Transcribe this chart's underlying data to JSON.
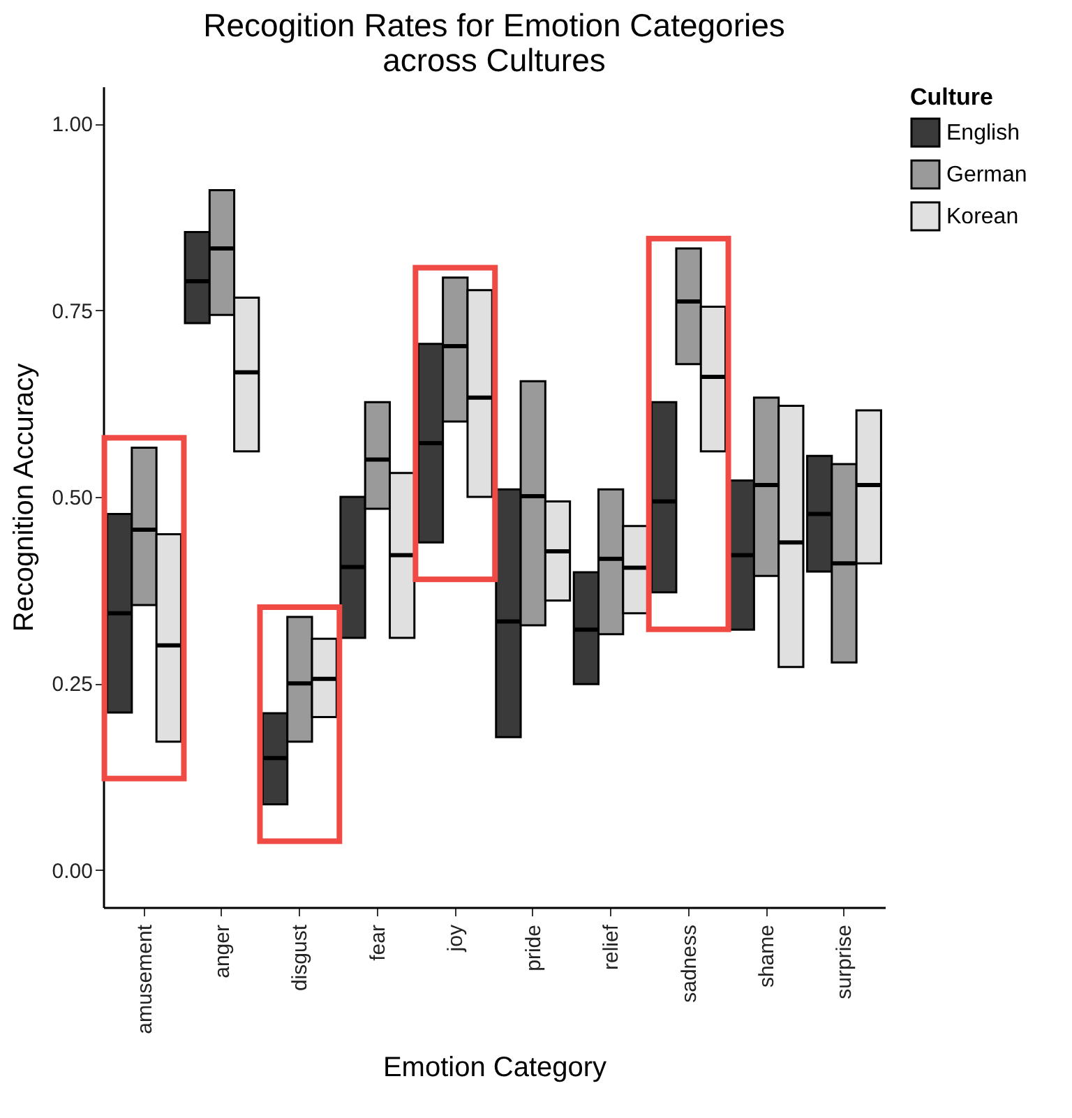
{
  "chart_data": {
    "type": "box",
    "title": "Recogition Rates for Emotion Categories across Cultures",
    "xlabel": "Emotion Category",
    "ylabel": "Recognition Accuracy",
    "legend_title": "Culture",
    "legend": "right",
    "grid": false,
    "categories": [
      "amusement",
      "anger",
      "disgust",
      "fear",
      "joy",
      "pride",
      "relief",
      "sadness",
      "shame",
      "surprise"
    ],
    "ylim": [
      -0.05,
      1.05
    ],
    "yticks": [
      {
        "value": 0,
        "label": "0.00"
      },
      {
        "value": 0.25,
        "label": "0.25"
      },
      {
        "value": 0.5,
        "label": "0.50"
      },
      {
        "value": 0.75,
        "label": "0.75"
      },
      {
        "value": 1,
        "label": "1.00"
      }
    ],
    "series": [
      {
        "name": "English",
        "color": "#3a3a3a",
        "boxes": [
          {
            "low": 0.211,
            "q1": 0.211,
            "median": 0.344,
            "q3": 0.477,
            "high": 0.477
          },
          {
            "low": 0.733,
            "q1": 0.733,
            "median": 0.789,
            "q3": 0.855,
            "high": 0.855
          },
          {
            "low": 0.088,
            "q1": 0.088,
            "median": 0.15,
            "q3": 0.21,
            "high": 0.21
          },
          {
            "low": 0.311,
            "q1": 0.311,
            "median": 0.406,
            "q3": 0.5,
            "high": 0.5
          },
          {
            "low": 0.439,
            "q1": 0.439,
            "median": 0.572,
            "q3": 0.705,
            "high": 0.705
          },
          {
            "low": 0.178,
            "q1": 0.178,
            "median": 0.333,
            "q3": 0.51,
            "high": 0.51
          },
          {
            "low": 0.249,
            "q1": 0.249,
            "median": 0.322,
            "q3": 0.399,
            "high": 0.399
          },
          {
            "low": 0.372,
            "q1": 0.372,
            "median": 0.494,
            "q3": 0.627,
            "high": 0.627
          },
          {
            "low": 0.322,
            "q1": 0.322,
            "median": 0.422,
            "q3": 0.522,
            "high": 0.522
          },
          {
            "low": 0.4,
            "q1": 0.4,
            "median": 0.477,
            "q3": 0.555,
            "high": 0.555
          }
        ]
      },
      {
        "name": "German",
        "color": "#9a9a9a",
        "boxes": [
          {
            "low": 0.355,
            "q1": 0.355,
            "median": 0.456,
            "q3": 0.566,
            "high": 0.566
          },
          {
            "low": 0.744,
            "q1": 0.744,
            "median": 0.833,
            "q3": 0.911,
            "high": 0.911
          },
          {
            "low": 0.172,
            "q1": 0.172,
            "median": 0.25,
            "q3": 0.339,
            "high": 0.339
          },
          {
            "low": 0.484,
            "q1": 0.484,
            "median": 0.55,
            "q3": 0.627,
            "high": 0.627
          },
          {
            "low": 0.601,
            "q1": 0.601,
            "median": 0.702,
            "q3": 0.794,
            "high": 0.794
          },
          {
            "low": 0.328,
            "q1": 0.328,
            "median": 0.501,
            "q3": 0.655,
            "high": 0.655
          },
          {
            "low": 0.316,
            "q1": 0.316,
            "median": 0.417,
            "q3": 0.51,
            "high": 0.51
          },
          {
            "low": 0.678,
            "q1": 0.678,
            "median": 0.762,
            "q3": 0.833,
            "high": 0.833
          },
          {
            "low": 0.394,
            "q1": 0.394,
            "median": 0.516,
            "q3": 0.633,
            "high": 0.633
          },
          {
            "low": 0.278,
            "q1": 0.278,
            "median": 0.411,
            "q3": 0.544,
            "high": 0.544
          }
        ]
      },
      {
        "name": "Korean",
        "color": "#e0e0e0",
        "boxes": [
          {
            "low": 0.172,
            "q1": 0.172,
            "median": 0.301,
            "q3": 0.45,
            "high": 0.45
          },
          {
            "low": 0.561,
            "q1": 0.561,
            "median": 0.667,
            "q3": 0.767,
            "high": 0.767
          },
          {
            "low": 0.205,
            "q1": 0.205,
            "median": 0.256,
            "q3": 0.31,
            "high": 0.31
          },
          {
            "low": 0.311,
            "q1": 0.311,
            "median": 0.422,
            "q3": 0.532,
            "high": 0.532
          },
          {
            "low": 0.5,
            "q1": 0.5,
            "median": 0.633,
            "q3": 0.777,
            "high": 0.777
          },
          {
            "low": 0.361,
            "q1": 0.361,
            "median": 0.427,
            "q3": 0.494,
            "high": 0.494
          },
          {
            "low": 0.344,
            "q1": 0.344,
            "median": 0.405,
            "q3": 0.461,
            "high": 0.461
          },
          {
            "low": 0.561,
            "q1": 0.561,
            "median": 0.661,
            "q3": 0.755,
            "high": 0.755
          },
          {
            "low": 0.272,
            "q1": 0.272,
            "median": 0.439,
            "q3": 0.622,
            "high": 0.622
          },
          {
            "low": 0.411,
            "q1": 0.411,
            "median": 0.516,
            "q3": 0.616,
            "high": 0.616
          }
        ]
      }
    ]
  }
}
